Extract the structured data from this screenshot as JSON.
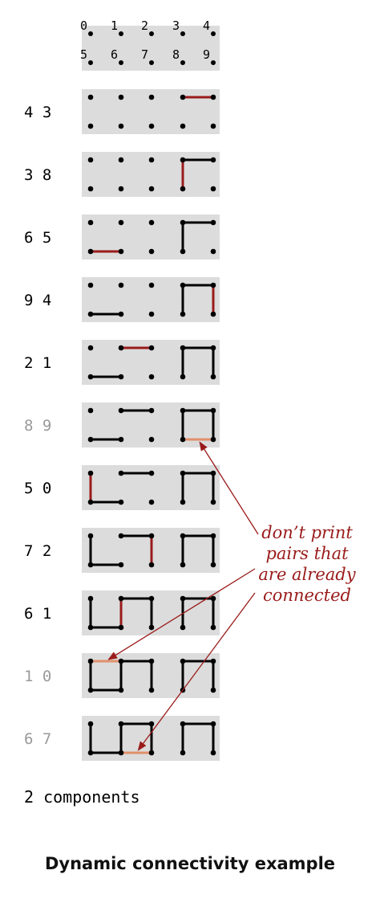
{
  "index_rows": [
    [
      "0",
      "1",
      "2",
      "3",
      "4"
    ],
    [
      "5",
      "6",
      "7",
      "8",
      "9"
    ]
  ],
  "steps": [
    {
      "p": 4,
      "q": 3,
      "skip": false
    },
    {
      "p": 3,
      "q": 8,
      "skip": false
    },
    {
      "p": 6,
      "q": 5,
      "skip": false
    },
    {
      "p": 9,
      "q": 4,
      "skip": false
    },
    {
      "p": 2,
      "q": 1,
      "skip": false
    },
    {
      "p": 8,
      "q": 9,
      "skip": true
    },
    {
      "p": 5,
      "q": 0,
      "skip": false
    },
    {
      "p": 7,
      "q": 2,
      "skip": false
    },
    {
      "p": 6,
      "q": 1,
      "skip": false
    },
    {
      "p": 1,
      "q": 0,
      "skip": true
    },
    {
      "p": 6,
      "q": 7,
      "skip": true
    }
  ],
  "annotation": [
    "don’t print",
    "pairs that",
    "are already",
    "connected"
  ],
  "summary": "2 components",
  "caption": "Dynamic connectivity example",
  "colors": {
    "panel": "#dcdcdc",
    "dot": "#000000",
    "edge": "#000000",
    "new_edge": "#9a1b1b",
    "redundant_edge": "#e0906a",
    "pair_text": "#000000",
    "skipped_pair_text": "#9a9a9a",
    "annotation": "#9a1b1b"
  }
}
